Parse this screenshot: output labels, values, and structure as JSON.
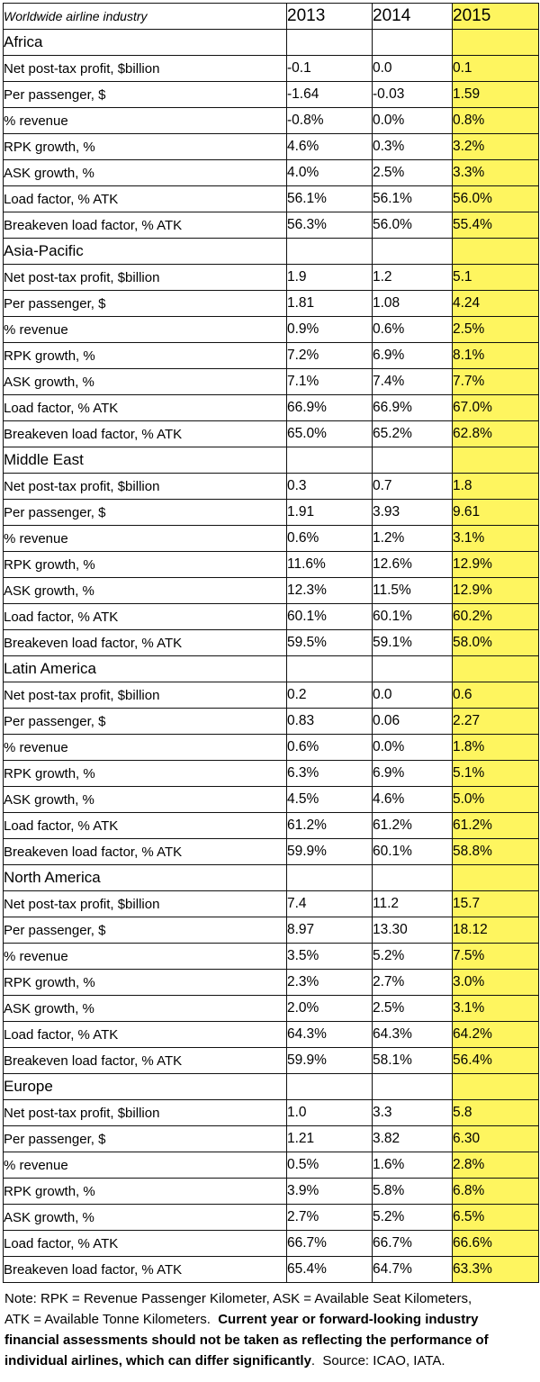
{
  "title": "Worldwide airline industry",
  "years": [
    "2013",
    "2014",
    "2015"
  ],
  "metrics": [
    {
      "label": "Net post-tax profit, $billion",
      "indent": 1
    },
    {
      "label": "Per passenger, $",
      "indent": 2
    },
    {
      "label": "% revenue",
      "indent": 2
    },
    {
      "label": "RPK growth, %",
      "indent": 1
    },
    {
      "label": "ASK growth, %",
      "indent": 1
    },
    {
      "label": "Load factor, % ATK",
      "indent": 1
    },
    {
      "label": "Breakeven load factor, % ATK",
      "indent": 1
    }
  ],
  "sections": [
    {
      "region": "Africa",
      "rows": [
        [
          "-0.1",
          "0.0",
          "0.1"
        ],
        [
          "-1.64",
          "-0.03",
          "1.59"
        ],
        [
          "-0.8%",
          "0.0%",
          "0.8%"
        ],
        [
          "4.6%",
          "0.3%",
          "3.2%"
        ],
        [
          "4.0%",
          "2.5%",
          "3.3%"
        ],
        [
          "56.1%",
          "56.1%",
          "56.0%"
        ],
        [
          "56.3%",
          "56.0%",
          "55.4%"
        ]
      ]
    },
    {
      "region": "Asia-Pacific",
      "rows": [
        [
          "1.9",
          "1.2",
          "5.1"
        ],
        [
          "1.81",
          "1.08",
          "4.24"
        ],
        [
          "0.9%",
          "0.6%",
          "2.5%"
        ],
        [
          "7.2%",
          "6.9%",
          "8.1%"
        ],
        [
          "7.1%",
          "7.4%",
          "7.7%"
        ],
        [
          "66.9%",
          "66.9%",
          "67.0%"
        ],
        [
          "65.0%",
          "65.2%",
          "62.8%"
        ]
      ]
    },
    {
      "region": "Middle East",
      "rows": [
        [
          "0.3",
          "0.7",
          "1.8"
        ],
        [
          "1.91",
          "3.93",
          "9.61"
        ],
        [
          "0.6%",
          "1.2%",
          "3.1%"
        ],
        [
          "11.6%",
          "12.6%",
          "12.9%"
        ],
        [
          "12.3%",
          "11.5%",
          "12.9%"
        ],
        [
          "60.1%",
          "60.1%",
          "60.2%"
        ],
        [
          "59.5%",
          "59.1%",
          "58.0%"
        ]
      ]
    },
    {
      "region": "Latin America",
      "rows": [
        [
          "0.2",
          "0.0",
          "0.6"
        ],
        [
          "0.83",
          "0.06",
          "2.27"
        ],
        [
          "0.6%",
          "0.0%",
          "1.8%"
        ],
        [
          "6.3%",
          "6.9%",
          "5.1%"
        ],
        [
          "4.5%",
          "4.6%",
          "5.0%"
        ],
        [
          "61.2%",
          "61.2%",
          "61.2%"
        ],
        [
          "59.9%",
          "60.1%",
          "58.8%"
        ]
      ]
    },
    {
      "region": "North America",
      "rows": [
        [
          "7.4",
          "11.2",
          "15.7"
        ],
        [
          "8.97",
          "13.30",
          "18.12"
        ],
        [
          "3.5%",
          "5.2%",
          "7.5%"
        ],
        [
          "2.3%",
          "2.7%",
          "3.0%"
        ],
        [
          "2.0%",
          "2.5%",
          "3.1%"
        ],
        [
          "64.3%",
          "64.3%",
          "64.2%"
        ],
        [
          "59.9%",
          "58.1%",
          "56.4%"
        ]
      ]
    },
    {
      "region": "Europe",
      "rows": [
        [
          "1.0",
          "3.3",
          "5.8"
        ],
        [
          "1.21",
          "3.82",
          "6.30"
        ],
        [
          "0.5%",
          "1.6%",
          "2.8%"
        ],
        [
          "3.9%",
          "5.8%",
          "6.8%"
        ],
        [
          "2.7%",
          "5.2%",
          "6.5%"
        ],
        [
          "66.7%",
          "66.7%",
          "66.6%"
        ],
        [
          "65.4%",
          "64.7%",
          "63.3%"
        ]
      ]
    }
  ],
  "note": {
    "lines": [
      [
        {
          "text": "Note: RPK = Revenue Passenger Kilometer, ASK = Available Seat Kilometers,",
          "bold": false
        }
      ],
      [
        {
          "text": "ATK = Available Tonne Kilometers.  ",
          "bold": false
        },
        {
          "text": "Current year or forward-looking industry",
          "bold": true
        }
      ],
      [
        {
          "text": "financial assessments should not be taken as reflecting the performance of",
          "bold": true
        }
      ],
      [
        {
          "text": "individual airlines, which can differ significantly",
          "bold": true
        },
        {
          "text": ".  Source: ICAO, IATA.",
          "bold": false
        }
      ]
    ]
  },
  "colors": {
    "highlight_2015": "#FEF55F",
    "border": "#111111"
  }
}
